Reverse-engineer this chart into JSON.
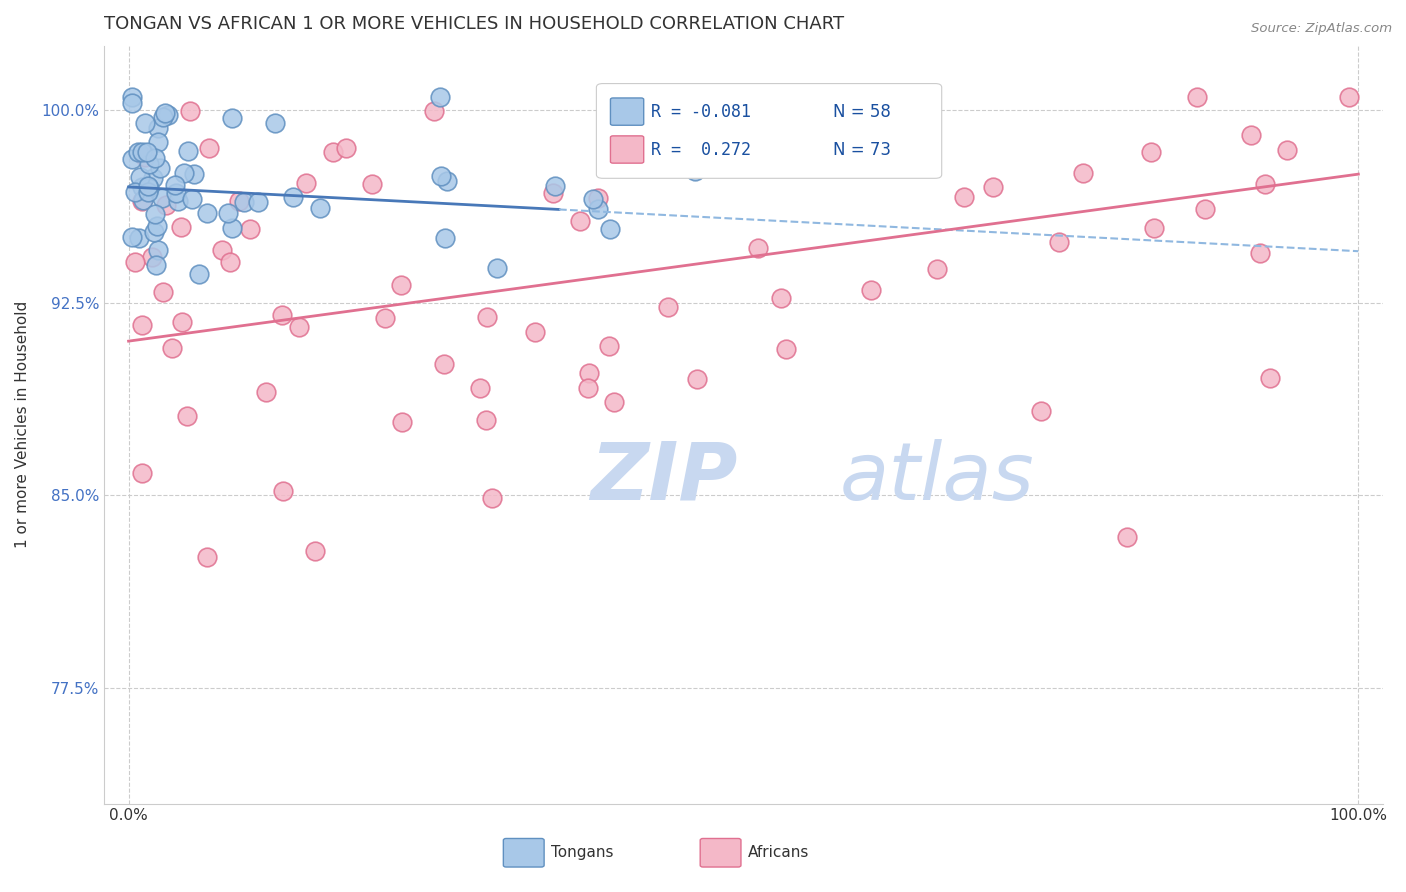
{
  "title": "TONGAN VS AFRICAN 1 OR MORE VEHICLES IN HOUSEHOLD CORRELATION CHART",
  "source_text": "Source: ZipAtlas.com",
  "ylabel": "1 or more Vehicles in Household",
  "xlim": [
    -2.0,
    102.0
  ],
  "ylim": [
    73.0,
    102.5
  ],
  "yticks": [
    77.5,
    85.0,
    92.5,
    100.0
  ],
  "ytick_labels": [
    "77.5%",
    "85.0%",
    "92.5%",
    "100.0%"
  ],
  "xtick_labels": [
    "0.0%",
    "100.0%"
  ],
  "xticks": [
    0.0,
    100.0
  ],
  "title_fontsize": 13,
  "label_fontsize": 11,
  "background_color": "#ffffff",
  "grid_color": "#cccccc",
  "blue_color": "#a8c8e8",
  "pink_color": "#f4b8c8",
  "blue_edge_color": "#6090c0",
  "pink_edge_color": "#e07090",
  "blue_line_color": "#4878b8",
  "pink_line_color": "#e07090",
  "blue_dash_color": "#90b8e0",
  "legend_blue_r": "R = -0.081",
  "legend_blue_n": "N = 58",
  "legend_pink_r": "R =  0.272",
  "legend_pink_n": "N = 73",
  "legend_label_tongan": "Tongans",
  "legend_label_african": "Africans",
  "marker_size": 180,
  "watermark_zip": "ZIP",
  "watermark_atlas": "atlas",
  "watermark_color_zip": "#c8d8f0",
  "watermark_color_atlas": "#c8d8f0",
  "blue_line_x0": 0,
  "blue_line_x1": 100,
  "blue_line_y0": 97.0,
  "blue_line_y1": 94.5,
  "blue_solid_end_x": 35,
  "pink_line_x0": 0,
  "pink_line_x1": 100,
  "pink_line_y0": 91.0,
  "pink_line_y1": 97.5
}
